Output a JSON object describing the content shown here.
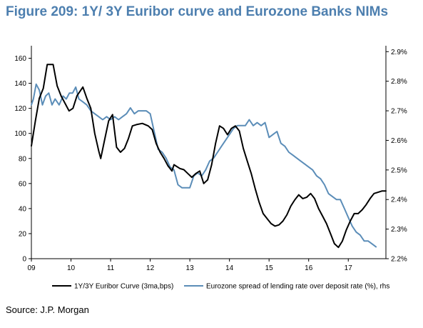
{
  "figure": {
    "title": "Figure 209: 1Y/ 3Y Euribor curve and Eurozone Banks NIMs",
    "source": "Source: J.P. Morgan"
  },
  "chart_data": {
    "type": "line",
    "title": "Figure 209: 1Y/ 3Y Euribor curve and Eurozone Banks NIMs",
    "x_ticks": [
      "09",
      "10",
      "11",
      "12",
      "13",
      "14",
      "15",
      "16",
      "17"
    ],
    "y_left": {
      "ticks": [
        0,
        20,
        40,
        60,
        80,
        100,
        120,
        140,
        160
      ],
      "range": [
        0,
        170
      ]
    },
    "y_right": {
      "ticks": [
        "2.2%",
        "2.3%",
        "2.4%",
        "2.5%",
        "2.6%",
        "2.7%",
        "2.8%",
        "2.9%"
      ],
      "range": [
        2.2,
        2.92
      ]
    },
    "x_range": [
      2009.0,
      2017.95
    ],
    "grid": false,
    "legend_position": "bottom",
    "colors": {
      "euribor": "#000000",
      "spread": "#5b8db8"
    },
    "series": [
      {
        "name": "1Y/3Y Euribor Curve (3ma,bps)",
        "axis": "left",
        "points": [
          [
            2009.0,
            90
          ],
          [
            2009.1,
            110
          ],
          [
            2009.2,
            128
          ],
          [
            2009.3,
            136
          ],
          [
            2009.4,
            155
          ],
          [
            2009.55,
            155
          ],
          [
            2009.65,
            138
          ],
          [
            2009.75,
            130
          ],
          [
            2009.85,
            124
          ],
          [
            2009.95,
            118
          ],
          [
            2010.05,
            120
          ],
          [
            2010.15,
            130
          ],
          [
            2010.3,
            137
          ],
          [
            2010.4,
            128
          ],
          [
            2010.5,
            120
          ],
          [
            2010.6,
            100
          ],
          [
            2010.7,
            86
          ],
          [
            2010.75,
            80
          ],
          [
            2010.85,
            95
          ],
          [
            2010.95,
            110
          ],
          [
            2011.05,
            115
          ],
          [
            2011.15,
            89
          ],
          [
            2011.25,
            85
          ],
          [
            2011.35,
            88
          ],
          [
            2011.45,
            96
          ],
          [
            2011.55,
            106
          ],
          [
            2011.65,
            107
          ],
          [
            2011.8,
            108
          ],
          [
            2011.95,
            106
          ],
          [
            2012.05,
            103
          ],
          [
            2012.15,
            92
          ],
          [
            2012.25,
            85
          ],
          [
            2012.35,
            80
          ],
          [
            2012.45,
            74
          ],
          [
            2012.55,
            70
          ],
          [
            2012.6,
            75
          ],
          [
            2012.75,
            72
          ],
          [
            2012.85,
            71
          ],
          [
            2012.95,
            68
          ],
          [
            2013.05,
            65
          ],
          [
            2013.15,
            68
          ],
          [
            2013.25,
            70
          ],
          [
            2013.35,
            60
          ],
          [
            2013.45,
            63
          ],
          [
            2013.55,
            75
          ],
          [
            2013.65,
            92
          ],
          [
            2013.75,
            106
          ],
          [
            2013.85,
            104
          ],
          [
            2013.95,
            99
          ],
          [
            2014.05,
            104
          ],
          [
            2014.15,
            106
          ],
          [
            2014.25,
            102
          ],
          [
            2014.35,
            88
          ],
          [
            2014.45,
            78
          ],
          [
            2014.55,
            68
          ],
          [
            2014.65,
            56
          ],
          [
            2014.75,
            45
          ],
          [
            2014.85,
            36
          ],
          [
            2014.95,
            32
          ],
          [
            2015.05,
            28
          ],
          [
            2015.15,
            26
          ],
          [
            2015.25,
            27
          ],
          [
            2015.35,
            30
          ],
          [
            2015.45,
            35
          ],
          [
            2015.55,
            42
          ],
          [
            2015.65,
            47
          ],
          [
            2015.75,
            51
          ],
          [
            2015.85,
            48
          ],
          [
            2015.95,
            49
          ],
          [
            2016.05,
            52
          ],
          [
            2016.15,
            48
          ],
          [
            2016.25,
            40
          ],
          [
            2016.35,
            34
          ],
          [
            2016.45,
            28
          ],
          [
            2016.55,
            20
          ],
          [
            2016.65,
            12
          ],
          [
            2016.75,
            9
          ],
          [
            2016.85,
            14
          ],
          [
            2016.95,
            23
          ],
          [
            2017.05,
            30
          ],
          [
            2017.15,
            36
          ],
          [
            2017.25,
            36
          ],
          [
            2017.35,
            39
          ],
          [
            2017.45,
            43
          ],
          [
            2017.55,
            48
          ],
          [
            2017.65,
            52
          ],
          [
            2017.75,
            53
          ],
          [
            2017.85,
            54
          ],
          [
            2017.95,
            54
          ]
        ]
      },
      {
        "name": "Eurozone spread of lending rate over deposit rate (%), rhs",
        "axis": "right",
        "points": [
          [
            2009.0,
            2.72
          ],
          [
            2009.05,
            2.74
          ],
          [
            2009.12,
            2.79
          ],
          [
            2009.2,
            2.77
          ],
          [
            2009.28,
            2.72
          ],
          [
            2009.36,
            2.75
          ],
          [
            2009.44,
            2.76
          ],
          [
            2009.52,
            2.72
          ],
          [
            2009.6,
            2.74
          ],
          [
            2009.7,
            2.72
          ],
          [
            2009.8,
            2.75
          ],
          [
            2009.88,
            2.74
          ],
          [
            2009.96,
            2.76
          ],
          [
            2010.04,
            2.76
          ],
          [
            2010.12,
            2.78
          ],
          [
            2010.2,
            2.74
          ],
          [
            2010.3,
            2.73
          ],
          [
            2010.4,
            2.72
          ],
          [
            2010.5,
            2.7
          ],
          [
            2010.6,
            2.69
          ],
          [
            2010.7,
            2.68
          ],
          [
            2010.8,
            2.67
          ],
          [
            2010.9,
            2.68
          ],
          [
            2011.0,
            2.67
          ],
          [
            2011.1,
            2.68
          ],
          [
            2011.2,
            2.67
          ],
          [
            2011.3,
            2.68
          ],
          [
            2011.4,
            2.69
          ],
          [
            2011.5,
            2.71
          ],
          [
            2011.6,
            2.69
          ],
          [
            2011.7,
            2.7
          ],
          [
            2011.8,
            2.7
          ],
          [
            2011.9,
            2.7
          ],
          [
            2012.0,
            2.69
          ],
          [
            2012.1,
            2.63
          ],
          [
            2012.2,
            2.57
          ],
          [
            2012.3,
            2.56
          ],
          [
            2012.4,
            2.54
          ],
          [
            2012.5,
            2.51
          ],
          [
            2012.6,
            2.5
          ],
          [
            2012.7,
            2.45
          ],
          [
            2012.8,
            2.44
          ],
          [
            2012.9,
            2.44
          ],
          [
            2013.0,
            2.44
          ],
          [
            2013.1,
            2.48
          ],
          [
            2013.2,
            2.49
          ],
          [
            2013.3,
            2.48
          ],
          [
            2013.4,
            2.5
          ],
          [
            2013.5,
            2.53
          ],
          [
            2013.6,
            2.54
          ],
          [
            2013.7,
            2.56
          ],
          [
            2013.8,
            2.58
          ],
          [
            2013.9,
            2.6
          ],
          [
            2014.0,
            2.62
          ],
          [
            2014.1,
            2.64
          ],
          [
            2014.2,
            2.65
          ],
          [
            2014.3,
            2.65
          ],
          [
            2014.4,
            2.65
          ],
          [
            2014.5,
            2.67
          ],
          [
            2014.6,
            2.65
          ],
          [
            2014.7,
            2.66
          ],
          [
            2014.8,
            2.65
          ],
          [
            2014.9,
            2.66
          ],
          [
            2015.0,
            2.61
          ],
          [
            2015.1,
            2.62
          ],
          [
            2015.2,
            2.63
          ],
          [
            2015.3,
            2.59
          ],
          [
            2015.4,
            2.58
          ],
          [
            2015.5,
            2.56
          ],
          [
            2015.6,
            2.55
          ],
          [
            2015.7,
            2.54
          ],
          [
            2015.8,
            2.53
          ],
          [
            2015.9,
            2.52
          ],
          [
            2016.0,
            2.51
          ],
          [
            2016.1,
            2.5
          ],
          [
            2016.2,
            2.48
          ],
          [
            2016.3,
            2.47
          ],
          [
            2016.4,
            2.45
          ],
          [
            2016.5,
            2.42
          ],
          [
            2016.6,
            2.41
          ],
          [
            2016.7,
            2.4
          ],
          [
            2016.8,
            2.4
          ],
          [
            2016.9,
            2.37
          ],
          [
            2017.0,
            2.34
          ],
          [
            2017.1,
            2.31
          ],
          [
            2017.2,
            2.29
          ],
          [
            2017.3,
            2.28
          ],
          [
            2017.4,
            2.26
          ],
          [
            2017.5,
            2.26
          ],
          [
            2017.6,
            2.25
          ],
          [
            2017.7,
            2.24
          ]
        ]
      }
    ]
  }
}
